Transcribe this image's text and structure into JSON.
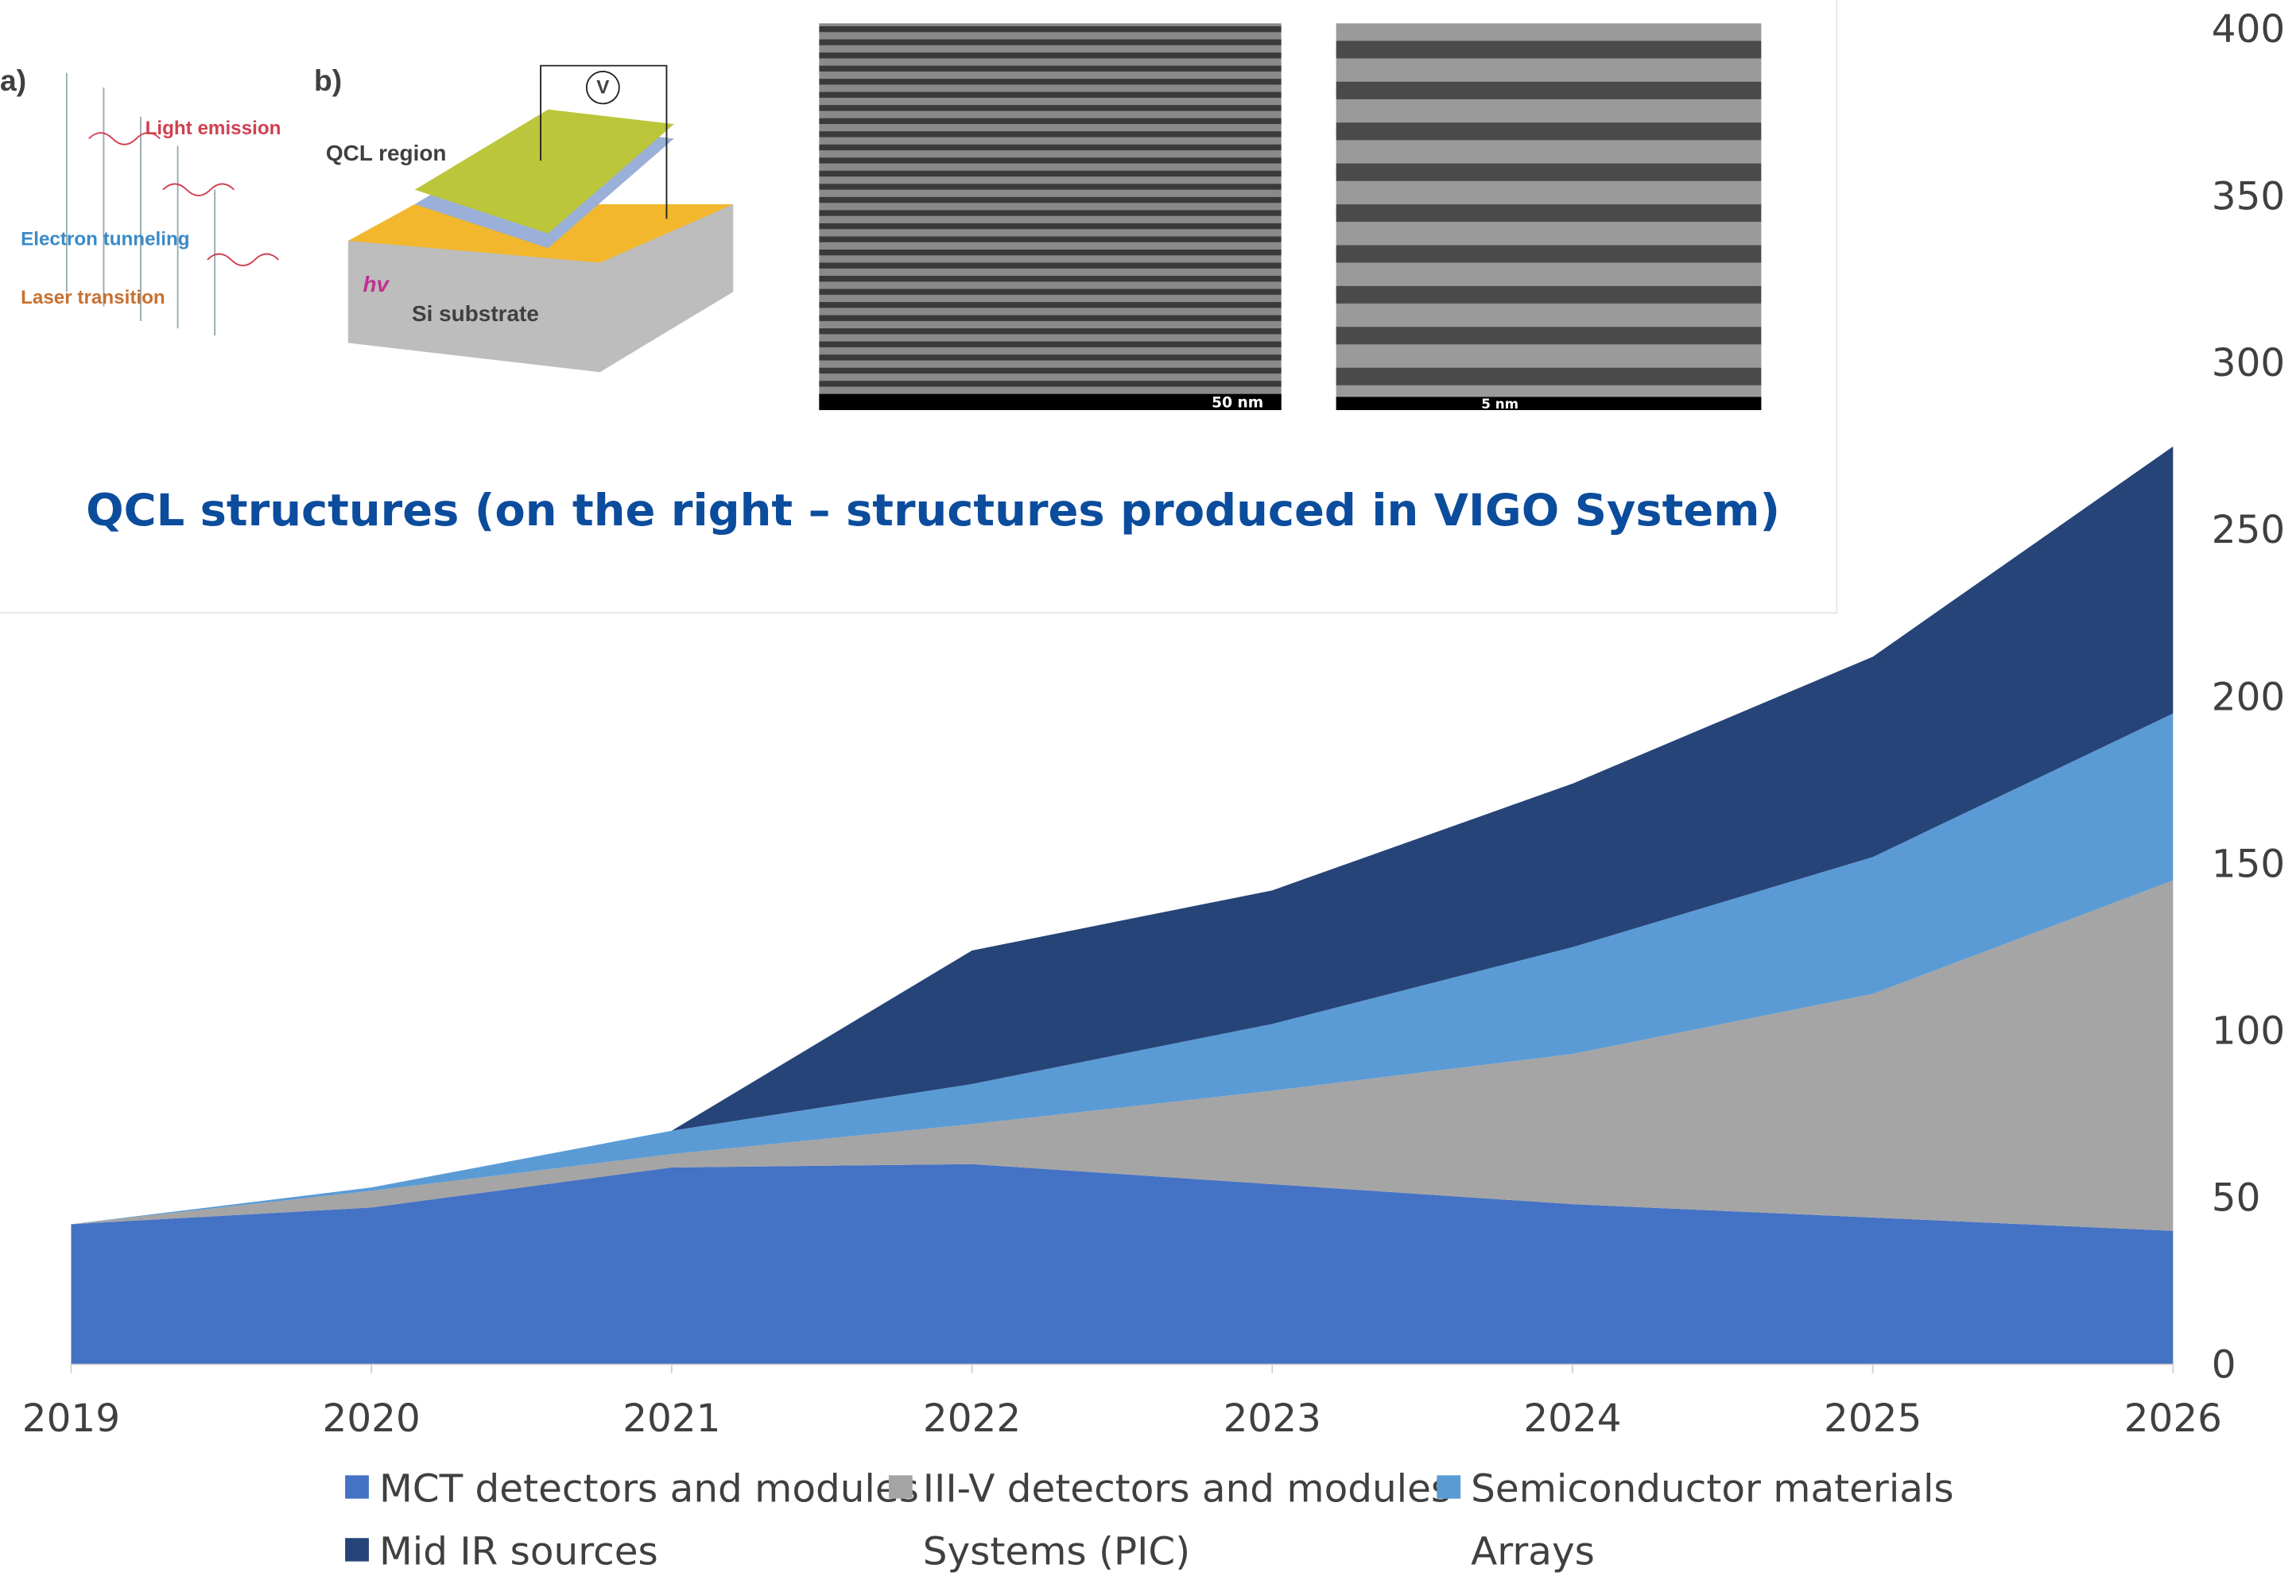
{
  "inset": {
    "caption": "QCL structures (on the right – structures produced in VIGO System)",
    "panel_a": "a)",
    "panel_b": "b)",
    "light_emission": "Light emission",
    "electron_tunneling": "Electron tunneling",
    "laser_transition": "Laser transition",
    "qcl_region": "QCL region",
    "si_substrate": "Si substrate",
    "hv": "hv",
    "voltage": "V",
    "scale_1": "50 nm",
    "scale_2": "5 nm"
  },
  "chart_data": {
    "type": "stacked_area",
    "categories": [
      "2019",
      "2020",
      "2021",
      "2022",
      "2023",
      "2024",
      "2025",
      "2026"
    ],
    "series": [
      {
        "name": "MCT detectors and modules",
        "color": "#4472c4",
        "values": [
          42,
          47,
          59,
          60,
          54,
          48,
          44,
          40
        ]
      },
      {
        "name": "III-V detectors and modules",
        "color": "#a5a5a5",
        "values": [
          0,
          5,
          4,
          12,
          28,
          45,
          67,
          105
        ]
      },
      {
        "name": "Semiconductor materials",
        "color": "#5b9bd5",
        "values": [
          0,
          1,
          7,
          12,
          20,
          32,
          41,
          50
        ]
      },
      {
        "name": "Mid IR sources",
        "color": "#264478",
        "values": [
          0,
          0,
          0,
          40,
          40,
          49,
          60,
          80
        ]
      },
      {
        "name": "Systems (PIC)",
        "values": [
          0,
          0,
          0,
          0,
          0,
          0,
          0,
          0
        ]
      },
      {
        "name": "Arrays",
        "values": [
          0,
          0,
          0,
          0,
          0,
          0,
          0,
          0
        ]
      }
    ],
    "ylim": [
      0,
      400
    ],
    "yticks": [
      0,
      50,
      100,
      150,
      200,
      250,
      300,
      350,
      400
    ],
    "grid": false
  }
}
